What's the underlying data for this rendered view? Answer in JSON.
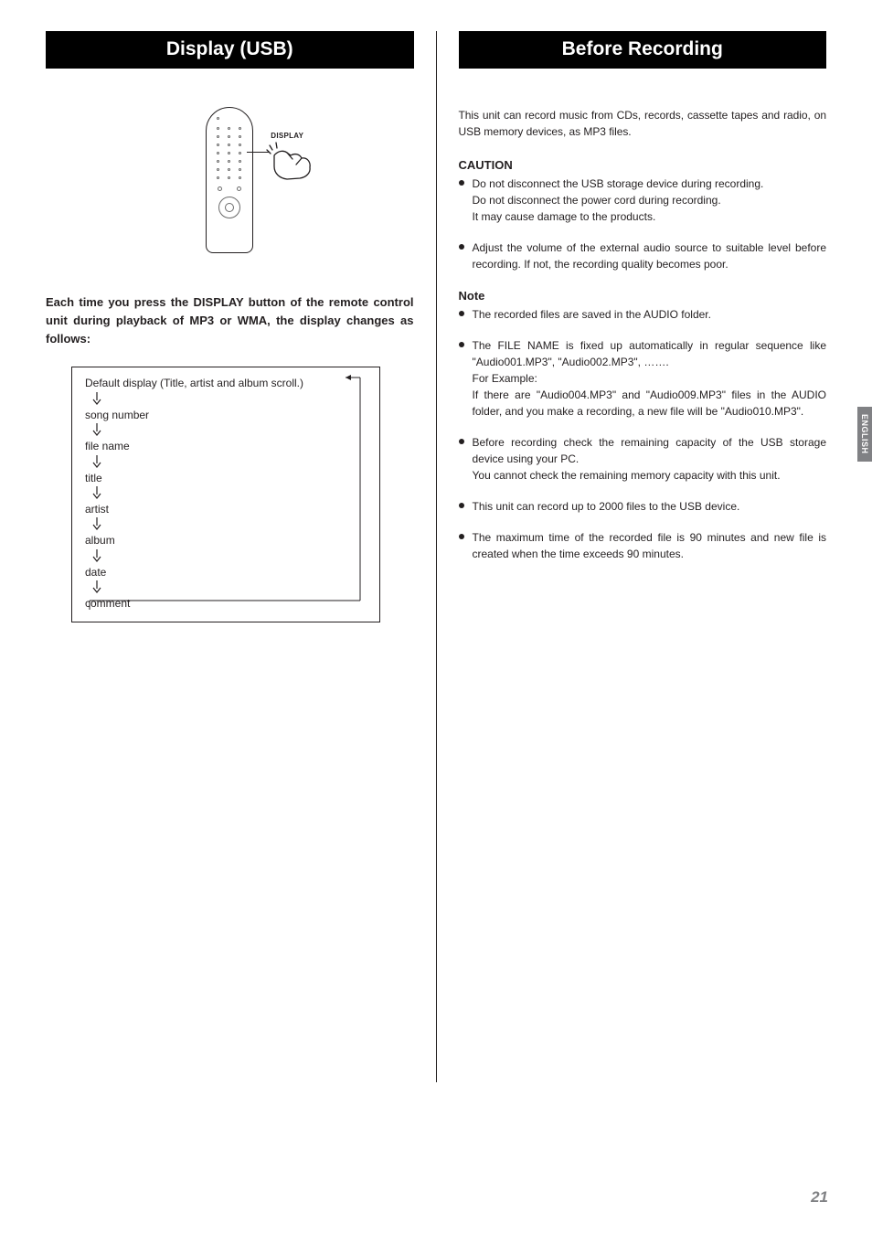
{
  "left": {
    "header": "Display (USB)",
    "remote_label": "DISPLAY",
    "lead_in": "Each time you press the DISPLAY button of the remote control unit during playback of MP3 or WMA, the display changes as follows:",
    "flow": {
      "top": "Default display (Title, artist and album scroll.)",
      "items": [
        "song number",
        "file name",
        "title",
        "artist",
        "album",
        "date",
        "comment"
      ]
    }
  },
  "right": {
    "header": "Before Recording",
    "intro": "This unit can record music from CDs, records, cassette tapes and radio, on USB memory devices, as MP3 files.",
    "caution_head": "CAUTION",
    "caution_items": [
      {
        "lines": [
          "Do not disconnect the USB storage device during recording.",
          "Do not disconnect the power cord during recording.",
          "It may cause damage to the products."
        ]
      },
      {
        "lines": [
          "Adjust the volume of the external audio source to suitable level before recording. If not, the recording quality becomes poor."
        ]
      }
    ],
    "note_head": "Note",
    "note_items": [
      {
        "lines": [
          "The recorded files are saved in the AUDIO folder."
        ]
      },
      {
        "lines": [
          "The FILE NAME is fixed up automatically in regular sequence like \"Audio001.MP3\", \"Audio002.MP3\", …….",
          "For Example:",
          "If there are \"Audio004.MP3\" and \"Audio009.MP3\" files in the AUDIO folder, and you make a recording, a new file will be \"Audio010.MP3\"."
        ]
      },
      {
        "lines": [
          "Before recording check the remaining capacity of the USB storage device using your PC.",
          "You cannot check the remaining memory capacity with this unit."
        ]
      },
      {
        "lines": [
          "This unit can record up to 2000 files to the USB device."
        ]
      },
      {
        "lines": [
          "The maximum time of the recorded file is 90 minutes and new file is created when the time exceeds 90 minutes."
        ]
      }
    ]
  },
  "side_tab": "ENGLISH",
  "page_number": "21",
  "colors": {
    "header_bg": "#000000",
    "header_fg": "#ffffff",
    "text": "#231f20",
    "tab_bg": "#808184",
    "tab_fg": "#ffffff",
    "page_num": "#808184"
  }
}
